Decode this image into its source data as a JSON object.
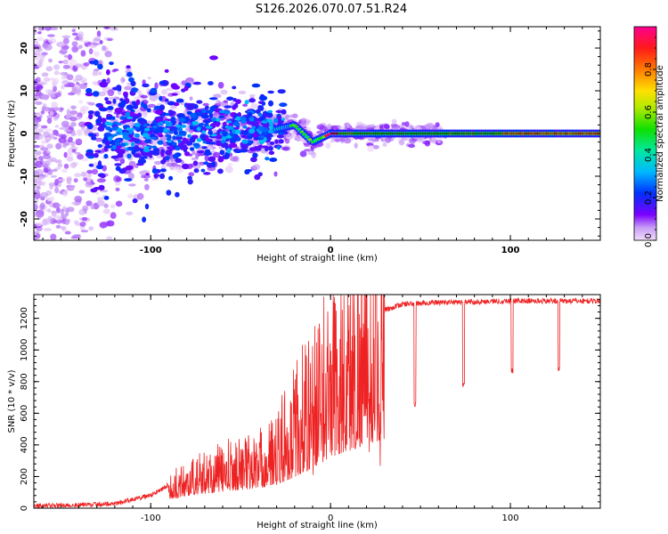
{
  "figure": {
    "title": "S126.2026.070.07.51.R24"
  },
  "chart_data": [
    {
      "type": "heatmap",
      "name": "spectrogram",
      "xlabel": "Height of straight line (km)",
      "ylabel": "Frequency (Hz)",
      "xlim": [
        -165,
        150
      ],
      "ylim": [
        -25,
        25
      ],
      "xticks": [
        -100,
        0,
        100
      ],
      "xtick_labels": [
        "-100",
        "0",
        "100"
      ],
      "yticks": [
        -20,
        -10,
        0,
        10,
        20
      ],
      "ytick_labels": [
        "-20",
        "-10",
        "0",
        "10",
        "20"
      ],
      "colorbar": {
        "label": "Normalized spectral amplitude",
        "range": [
          0,
          1
        ],
        "ticks": [
          0.0,
          0.2,
          0.4,
          0.6,
          0.8
        ],
        "tick_labels": [
          "0.0",
          "0.2",
          "0.4",
          "0.6",
          "0.8"
        ]
      },
      "ridge": {
        "description_points": [
          [
            -135,
            0
          ],
          [
            -30,
            1
          ],
          [
            -20,
            2
          ],
          [
            -10,
            -2
          ],
          [
            -5,
            -1
          ],
          [
            0,
            0
          ],
          [
            150,
            0
          ]
        ],
        "peak_amplitude": 0.95
      }
    },
    {
      "type": "line",
      "name": "snr",
      "xlabel": "Height of straight line (km)",
      "ylabel": "SNR (10 * v/v)",
      "xlim": [
        -165,
        150
      ],
      "ylim": [
        0,
        1350
      ],
      "xticks": [
        -100,
        0,
        100
      ],
      "xtick_labels": [
        "-100",
        "0",
        "100"
      ],
      "yticks": [
        0,
        200,
        400,
        600,
        800,
        1000,
        1200
      ],
      "ytick_labels": [
        "0",
        "200",
        "400",
        "600",
        "800",
        "1000",
        "1200"
      ],
      "color": "#ee2222",
      "envelope": {
        "x": [
          -165,
          -140,
          -120,
          -100,
          -80,
          -60,
          -40,
          -30,
          -20,
          -10,
          -5,
          0,
          10,
          20,
          30,
          40,
          60,
          80,
          100,
          120,
          150
        ],
        "y": [
          15,
          20,
          30,
          80,
          220,
          300,
          360,
          420,
          560,
          720,
          820,
          900,
          1020,
          1150,
          1250,
          1290,
          1300,
          1305,
          1310,
          1310,
          1310
        ]
      },
      "dips": [
        {
          "x": 47,
          "y": 630
        },
        {
          "x": 74,
          "y": 750
        },
        {
          "x": 101,
          "y": 850
        },
        {
          "x": 127,
          "y": 860
        }
      ]
    }
  ]
}
